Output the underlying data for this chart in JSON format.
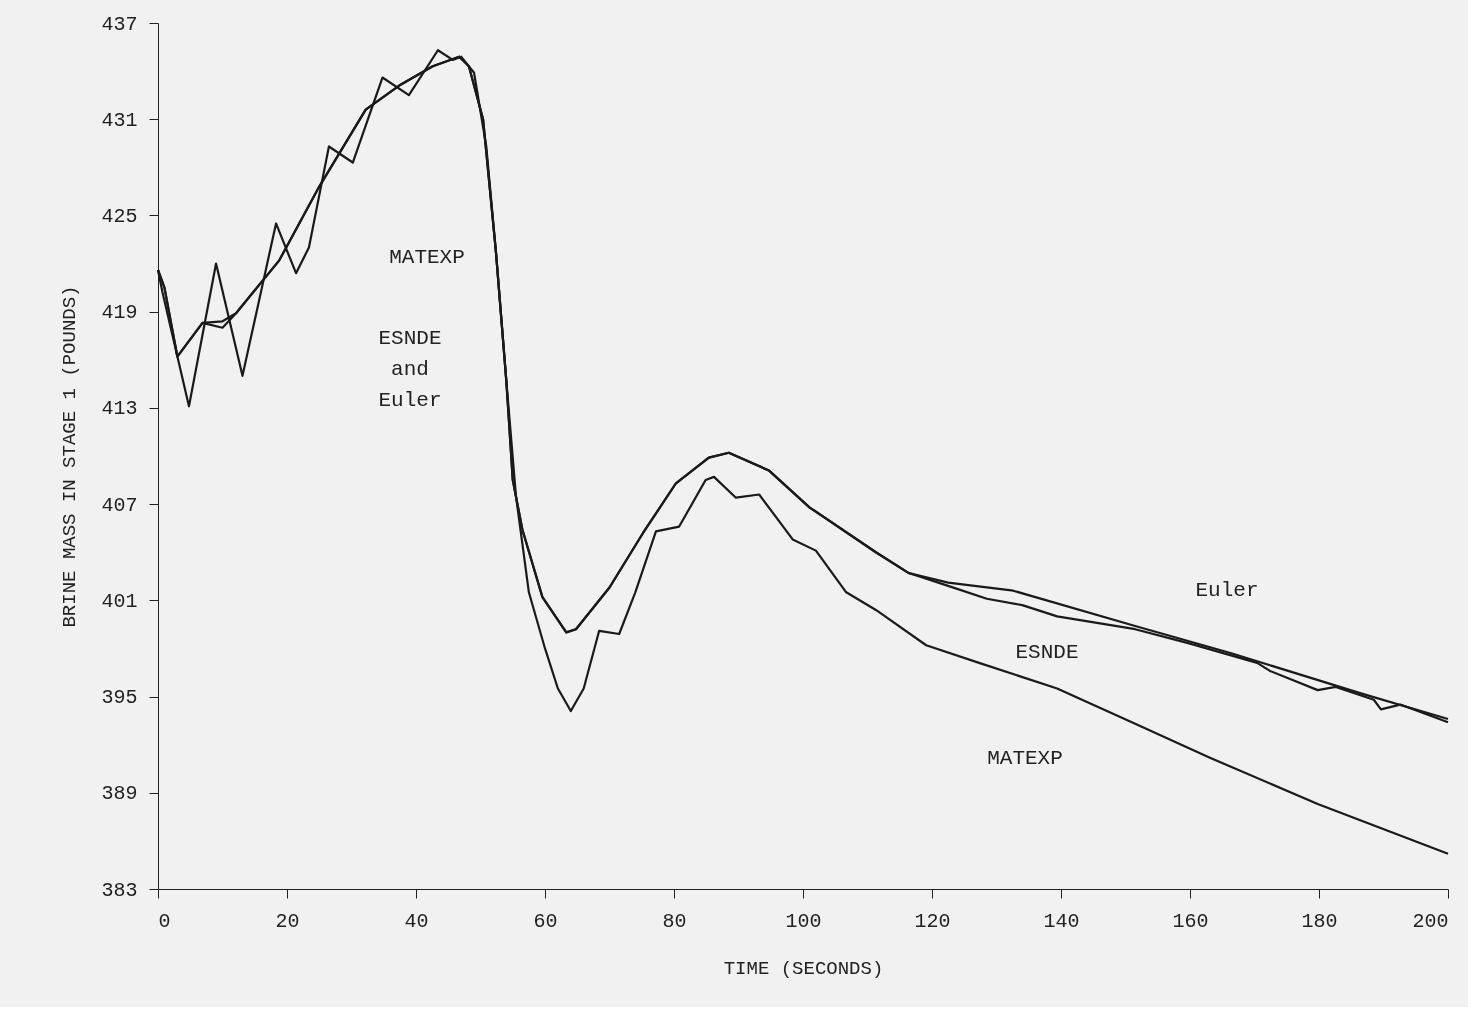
{
  "chart_data": {
    "type": "line",
    "xlabel": "TIME (SECONDS)",
    "ylabel": "BRINE MASS IN STAGE 1 (POUNDS)",
    "xlim": [
      0,
      200
    ],
    "ylim": [
      383,
      437
    ],
    "xticks": [
      0,
      20,
      40,
      60,
      80,
      100,
      120,
      140,
      160,
      180,
      200
    ],
    "yticks": [
      383,
      389,
      395,
      401,
      407,
      413,
      419,
      425,
      431,
      437
    ],
    "grid": false,
    "legend": false,
    "marker": "none",
    "line_style": "solid",
    "series": [
      {
        "color": "#1a1a1a",
        "x": [
          0,
          0.7,
          4.8,
          9,
          13.1,
          18.3,
          21.4,
          23.4,
          26.5,
          30.2,
          34.8,
          38.9,
          43.4,
          45.7,
          47,
          49,
          50.9,
          52.4,
          54,
          55.5,
          57.5,
          60,
          62,
          64,
          66,
          68.4,
          71.5,
          74,
          77.2,
          80.8,
          84.9,
          86.2,
          89.6,
          93.2,
          98.4,
          102,
          106.7,
          111.3,
          119.1,
          127.3,
          139.4,
          151.5,
          163,
          179.8,
          200
        ],
        "values": [
          421.6,
          420.2,
          413.1,
          422.0,
          415.0,
          424.5,
          421.4,
          423.0,
          429.3,
          428.3,
          433.6,
          432.5,
          435.3,
          434.7,
          434.9,
          433.9,
          429.3,
          422.7,
          414.7,
          407.5,
          401.5,
          398.0,
          395.5,
          394.1,
          395.5,
          399.1,
          398.9,
          401.5,
          405.3,
          405.6,
          408.5,
          408.7,
          407.4,
          407.6,
          404.8,
          404.1,
          401.5,
          400.4,
          398.2,
          397.1,
          395.5,
          393.3,
          391.2,
          388.3,
          385.2
        ]
      },
      {
        "color": "#1a1a1a",
        "x": [
          0,
          1,
          3,
          6.9,
          10,
          12.1,
          18.8,
          25,
          32.2,
          37.4,
          42.6,
          46.7,
          48.2,
          50.4,
          52.4,
          54,
          55,
          56.5,
          59.6,
          63.3,
          64.8,
          70,
          75.2,
          80.3,
          85.4,
          88.5,
          94.7,
          101,
          111.3,
          116.4,
          122.5,
          128.5,
          134,
          139.4,
          151.5,
          160,
          170.4,
          172.4,
          179.8,
          182.6,
          188.5,
          189.6,
          192.6,
          200
        ],
        "values": [
          421.6,
          420.5,
          416.2,
          418.3,
          418.0,
          418.9,
          422.2,
          426.8,
          431.6,
          433.1,
          434.3,
          434.9,
          434.3,
          431,
          422.7,
          414.7,
          408.5,
          405.4,
          401.2,
          399.0,
          399.2,
          401.8,
          405.2,
          408.3,
          409.9,
          410.2,
          409.1,
          406.8,
          404.0,
          402.7,
          401.9,
          401.1,
          400.7,
          400.0,
          399.2,
          398.3,
          397.1,
          396.6,
          395.4,
          395.6,
          394.8,
          394.2,
          394.5,
          393.4
        ]
      },
      {
        "color": "#1a1a1a",
        "x": [
          0,
          1,
          3,
          6.9,
          10,
          12.1,
          18.8,
          25,
          32.2,
          37.4,
          42.6,
          46.7,
          48.2,
          50.4,
          52.4,
          54,
          55,
          56.5,
          59.6,
          63.3,
          64.8,
          70,
          75.2,
          80.3,
          85.4,
          88.5,
          94.7,
          101,
          111.3,
          116.4,
          122.5,
          132.6,
          151.5,
          166.4,
          186.5,
          200
        ],
        "values": [
          421.6,
          420.5,
          416.2,
          418.3,
          418.4,
          418.9,
          422.2,
          426.8,
          431.6,
          433.1,
          434.3,
          434.9,
          434.3,
          431,
          422.7,
          414.7,
          408.5,
          405.4,
          401.2,
          399.0,
          399.2,
          401.8,
          405.2,
          408.3,
          409.9,
          410.2,
          409.1,
          406.8,
          404.0,
          402.7,
          402.1,
          401.6,
          399.4,
          397.7,
          395.2,
          393.6
        ]
      }
    ],
    "annotations": [
      "MATEXP",
      "ESNDE and Euler",
      "Euler",
      "ESNDE",
      "MATEXP"
    ]
  }
}
